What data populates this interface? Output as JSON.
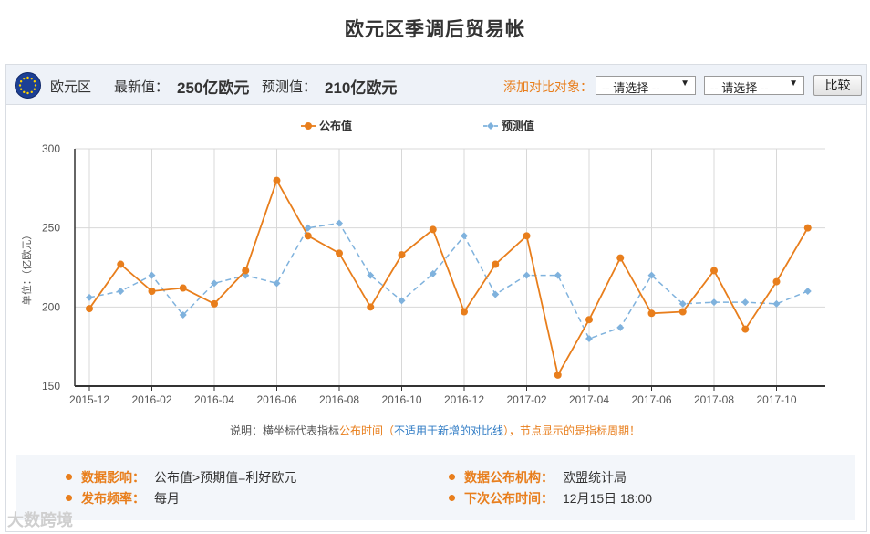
{
  "title": "欧元区季调后贸易帐",
  "topbar": {
    "region": "欧元区",
    "latest_label": "最新值：",
    "latest_value": "250亿欧元",
    "forecast_label": "预测值：",
    "forecast_value": "210亿欧元",
    "compare_label": "添加对比对象：",
    "select1": "-- 请选择 --",
    "select2": "-- 请选择 --",
    "compare_button": "比较"
  },
  "chart_data": {
    "type": "line",
    "title": "",
    "xlabel": "",
    "ylabel": "单位：（亿欧元）",
    "ylim": [
      150,
      300
    ],
    "yticks": [
      150,
      200,
      250,
      300
    ],
    "grid": true,
    "legend_position": "top-center",
    "x": [
      "2015-12",
      "2016-01",
      "2016-02",
      "2016-03",
      "2016-04",
      "2016-05",
      "2016-06",
      "2016-07",
      "2016-08",
      "2016-09",
      "2016-10",
      "2016-11",
      "2016-12",
      "2017-01",
      "2017-02",
      "2017-03",
      "2017-04",
      "2017-05",
      "2017-06",
      "2017-07",
      "2017-08",
      "2017-09",
      "2017-10",
      "2017-11"
    ],
    "xtick_labels": [
      "2015-12",
      "2016-02",
      "2016-04",
      "2016-06",
      "2016-08",
      "2016-10",
      "2016-12",
      "2017-02",
      "2017-04",
      "2017-06",
      "2017-08",
      "2017-10"
    ],
    "series": [
      {
        "name": "公布值",
        "color": "#e87e1c",
        "style": "solid",
        "values": [
          199,
          227,
          210,
          212,
          202,
          223,
          280,
          245,
          234,
          200,
          233,
          249,
          197,
          227,
          245,
          157,
          192,
          231,
          196,
          197,
          223,
          186,
          216,
          250
        ]
      },
      {
        "name": "预测值",
        "color": "#7fb2dd",
        "style": "dashed",
        "values": [
          206,
          210,
          220,
          195,
          215,
          220,
          215,
          250,
          253,
          220,
          204,
          221,
          245,
          208,
          220,
          220,
          180,
          187,
          220,
          202,
          203,
          203,
          202,
          210
        ]
      }
    ]
  },
  "note": {
    "prefix": "说明：横坐标代表指标",
    "publish_time": "公布时间",
    "paren_open": "（",
    "not_apply": "不适用于新增的对比线",
    "paren_close": "），节点显示的是",
    "period": "指标周期",
    "end": "！"
  },
  "info": {
    "impact_label": "数据影响：",
    "impact_value": "公布值>预期值=利好欧元",
    "agency_label": "数据公布机构：",
    "agency_value": "欧盟统计局",
    "freq_label": "发布频率：",
    "freq_value": "每月",
    "next_label": "下次公布时间：",
    "next_value": "12月15日 18:00"
  },
  "watermark": "大数跨境"
}
